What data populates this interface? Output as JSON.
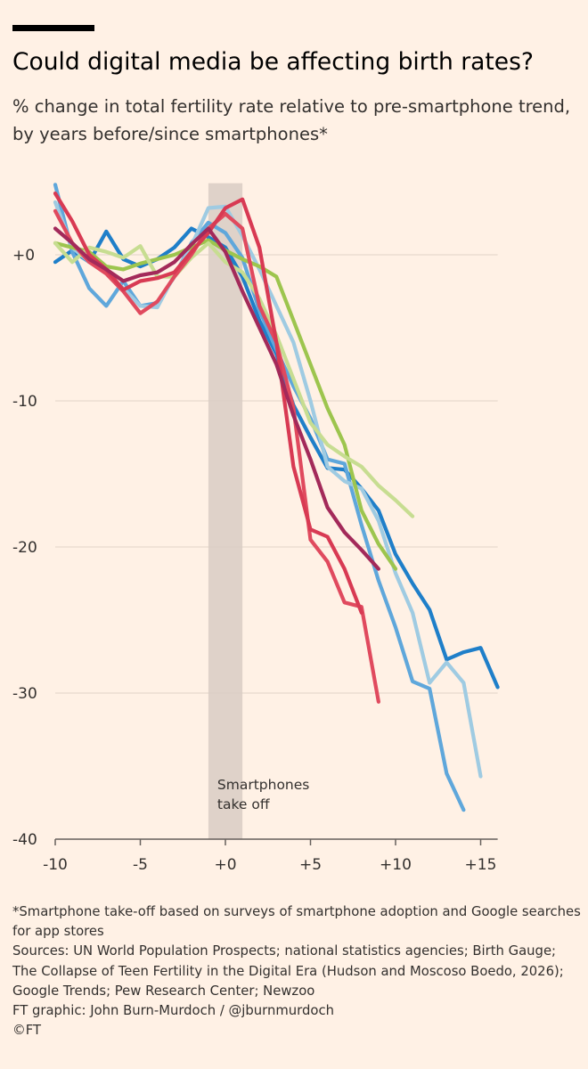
{
  "header": {
    "title": "Could digital media be affecting birth rates?",
    "subtitle": "% change in total fertility rate relative to pre-smartphone trend, by years before/since smartphones*"
  },
  "footer": {
    "note": "*Smartphone take-off based on surveys of smartphone adoption and Google searches for app stores",
    "sources": "Sources: UN World Population Prospects; national statistics agencies; Birth Gauge; The Collapse of Teen Fertility in the Digital Era (Hudson and Moscoso Boedo, 2026); Google Trends; Pew Research Center; Newzoo",
    "credit": "FT graphic: John Burn-Murdoch / @jburnmurdoch",
    "copyright": "©FT"
  },
  "colors": {
    "background": "#FFF1E5",
    "gridline": "#E6D9CE",
    "axis": "#66605C",
    "band": "#D9CDC4"
  },
  "chart_data": {
    "type": "line",
    "title": "Could digital media be affecting birth rates?",
    "subtitle": "% change in total fertility rate relative to pre-smartphone trend, by years before/since smartphones*",
    "xlim": [
      -10,
      16
    ],
    "ylim": [
      -40,
      5
    ],
    "x_ticks": [
      -10,
      -5,
      0,
      5,
      10,
      15
    ],
    "x_tick_labels": [
      "-10",
      "-5",
      "+0",
      "+5",
      "+10",
      "+15"
    ],
    "y_ticks": [
      0,
      -10,
      -20,
      -30,
      -40
    ],
    "y_tick_labels": [
      "+0",
      "-10",
      "-20",
      "-30",
      "-40"
    ],
    "grid": true,
    "legend": "none",
    "shaded_band": {
      "x_start": -1,
      "x_end": 1,
      "label_lines": [
        "Smartphones",
        "take off"
      ]
    },
    "series": [
      {
        "color": "#1F7FC9",
        "x": [
          -10,
          -9,
          -8,
          -7,
          -6,
          -5,
          -4,
          -3,
          -2,
          -1,
          0,
          1,
          2,
          3,
          4,
          5,
          6,
          7,
          8,
          9,
          10,
          11,
          12,
          13,
          14,
          15,
          16
        ],
        "y": [
          -0.5,
          0.3,
          -0.5,
          1.6,
          -0.3,
          -0.8,
          -0.3,
          0.5,
          1.8,
          1.2,
          0.5,
          -1.5,
          -4.5,
          -6.8,
          -10.3,
          -12.5,
          -14.6,
          -14.7,
          -16,
          -17.5,
          -20.5,
          -22.5,
          -24.3,
          -27.7,
          -27.2,
          -26.9,
          -29.6
        ]
      },
      {
        "color": "#5FA7DB",
        "x": [
          -10,
          -9,
          -8,
          -7,
          -6,
          -5,
          -4,
          -3,
          -2,
          -1,
          0,
          1,
          2,
          3,
          4,
          5,
          6,
          7,
          8,
          9,
          10,
          11,
          12,
          13,
          14
        ],
        "y": [
          4.8,
          0.2,
          -2.3,
          -3.5,
          -1.8,
          -3.5,
          -3.3,
          -1.5,
          0.8,
          2.2,
          1.5,
          -0.2,
          -3.8,
          -6.5,
          -9,
          -11.2,
          -14,
          -14.3,
          -18.5,
          -22.3,
          -25.5,
          -29.2,
          -29.7,
          -35.5,
          -38
        ]
      },
      {
        "color": "#9FCBE2",
        "x": [
          -10,
          -9,
          -8,
          -7,
          -6,
          -5,
          -4,
          -3,
          -2,
          -1,
          0,
          1,
          2,
          3,
          4,
          5,
          6,
          7,
          8,
          9,
          10,
          11,
          12,
          13,
          14,
          15
        ],
        "y": [
          3.6,
          0.5,
          -0.5,
          -1.2,
          -2.3,
          -3.5,
          -3.6,
          -1.4,
          0.6,
          3.2,
          3.3,
          1.3,
          -1,
          -3.5,
          -6,
          -10,
          -14.5,
          -15.5,
          -16,
          -18.2,
          -21.8,
          -24.5,
          -29.3,
          -27.9,
          -29.3,
          -35.7
        ]
      },
      {
        "color": "#9DC54E",
        "x": [
          -10,
          -9,
          -8,
          -7,
          -6,
          -5,
          -4,
          -3,
          -2,
          -1,
          0,
          1,
          2,
          3,
          4,
          5,
          6,
          7,
          8,
          9,
          10
        ],
        "y": [
          0.8,
          0.5,
          0.2,
          -0.8,
          -1,
          -0.6,
          -0.3,
          0,
          0.5,
          1,
          0.3,
          -0.3,
          -0.8,
          -1.5,
          -4.5,
          -7.5,
          -10.5,
          -13,
          -17.5,
          -19.8,
          -21.5
        ]
      },
      {
        "color": "#C7DD91",
        "x": [
          -10,
          -9,
          -8,
          -7,
          -6,
          -5,
          -4,
          -3,
          -2,
          -1,
          0,
          1,
          2,
          3,
          4,
          5,
          6,
          7,
          8,
          9,
          10,
          11
        ],
        "y": [
          0.8,
          -0.5,
          0.5,
          0.2,
          -0.2,
          0.6,
          -1.5,
          -1.5,
          -0.2,
          0.8,
          -0.5,
          -1.2,
          -3,
          -5.5,
          -8.5,
          -11.5,
          -13,
          -13.8,
          -14.5,
          -15.8,
          -16.8,
          -17.9
        ]
      },
      {
        "color": "#E04A5E",
        "x": [
          -10,
          -9,
          -8,
          -7,
          -6,
          -5,
          -4,
          -3,
          -2,
          -1,
          0,
          1,
          2,
          3,
          4,
          5,
          6,
          7,
          8,
          9
        ],
        "y": [
          3,
          0.8,
          -0.5,
          -1.3,
          -2.5,
          -4,
          -3.2,
          -1.5,
          0,
          1.8,
          2.8,
          1.8,
          -3.5,
          -6,
          -10.5,
          -19.5,
          -21,
          -23.8,
          -24.1,
          -30.6
        ]
      },
      {
        "color": "#D83A53",
        "x": [
          -10,
          -9,
          -8,
          -7,
          -6,
          -5,
          -4,
          -3,
          -2,
          -1,
          0,
          1,
          2,
          3,
          4,
          5,
          6,
          7,
          8
        ],
        "y": [
          4.2,
          2.3,
          0,
          -1,
          -2.4,
          -1.8,
          -1.6,
          -1.2,
          0.2,
          1.5,
          3.2,
          3.8,
          0.5,
          -6,
          -14.5,
          -18.8,
          -19.3,
          -21.5,
          -24.5
        ]
      },
      {
        "color": "#A32A5A",
        "x": [
          -10,
          -9,
          -8,
          -7,
          -6,
          -5,
          -4,
          -3,
          -2,
          -1,
          0,
          1,
          2,
          3,
          4,
          5,
          6,
          7,
          8,
          9
        ],
        "y": [
          1.8,
          0.8,
          -0.3,
          -1,
          -1.8,
          -1.4,
          -1.2,
          -0.5,
          0.7,
          1.8,
          0.2,
          -2.5,
          -5,
          -7.5,
          -11,
          -14,
          -17.3,
          -19,
          -20.2,
          -21.5
        ]
      }
    ]
  }
}
